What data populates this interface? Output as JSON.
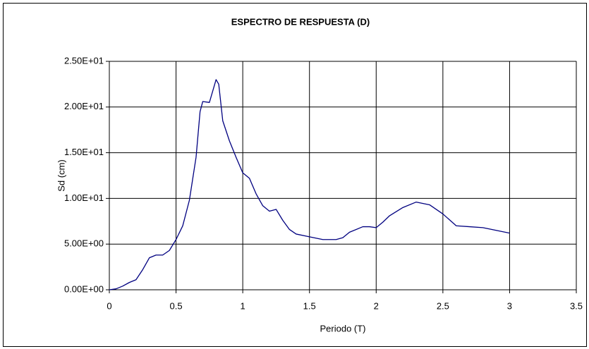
{
  "chart_data": {
    "type": "line",
    "title": "ESPECTRO DE RESPUESTA (D)",
    "x_label": "Periodo (T)",
    "y_label": "Sd (cm)",
    "x": [
      0,
      0.05,
      0.1,
      0.15,
      0.2,
      0.25,
      0.3,
      0.35,
      0.4,
      0.45,
      0.5,
      0.55,
      0.6,
      0.65,
      0.68,
      0.7,
      0.75,
      0.8,
      0.82,
      0.85,
      0.9,
      0.95,
      1.0,
      1.05,
      1.1,
      1.15,
      1.2,
      1.25,
      1.3,
      1.35,
      1.4,
      1.5,
      1.6,
      1.7,
      1.75,
      1.8,
      1.9,
      1.95,
      2.0,
      2.05,
      2.1,
      2.2,
      2.3,
      2.4,
      2.5,
      2.6,
      2.7,
      2.8,
      2.9,
      3.0
    ],
    "series": [
      {
        "name": "Sd",
        "color": "#000080",
        "values": [
          0,
          0.1,
          0.4,
          0.8,
          1.1,
          2.2,
          3.5,
          3.8,
          3.8,
          4.3,
          5.5,
          7.0,
          9.8,
          14.5,
          19.5,
          20.6,
          20.5,
          23.0,
          22.5,
          18.5,
          16.3,
          14.5,
          12.8,
          12.2,
          10.5,
          9.2,
          8.6,
          8.8,
          7.6,
          6.6,
          6.1,
          5.8,
          5.5,
          5.5,
          5.7,
          6.3,
          6.9,
          6.9,
          6.8,
          7.4,
          8.1,
          9.0,
          9.6,
          9.3,
          8.3,
          7.0,
          6.9,
          6.8,
          6.5,
          6.2
        ]
      }
    ],
    "xlim": [
      0,
      3.5
    ],
    "xticks": [
      0,
      0.5,
      1,
      1.5,
      2,
      2.5,
      3,
      3.5
    ],
    "ylim": [
      0,
      25
    ],
    "yticks": [
      {
        "value": 0,
        "label": "0.00E+00"
      },
      {
        "value": 5,
        "label": "5.00E+00"
      },
      {
        "value": 10,
        "label": "1.00E+01"
      },
      {
        "value": 15,
        "label": "1.50E+01"
      },
      {
        "value": 20,
        "label": "2.00E+01"
      },
      {
        "value": 25,
        "label": "2.50E+01"
      }
    ],
    "grid": true
  }
}
